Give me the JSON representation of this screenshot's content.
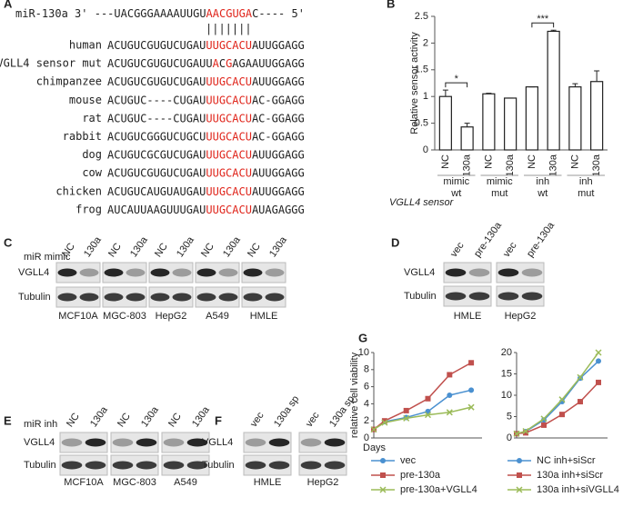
{
  "panel_a": {
    "label": "A",
    "mirna": {
      "name": "miR-130a 3'",
      "segments": [
        {
          "text": "---UACGGGAAAAUUGU",
          "red": false
        },
        {
          "text": "AACGUGA",
          "red": true
        },
        {
          "text": "C---- 5'",
          "red": false
        }
      ]
    },
    "pairing": "|||||||",
    "rows": [
      {
        "species": "human",
        "segments": [
          {
            "text": "ACUGUCGUGUCUGAU",
            "red": false
          },
          {
            "text": "UUGCACU",
            "red": true
          },
          {
            "text": "AUUGGAGG",
            "red": false
          }
        ]
      },
      {
        "species": "VGLL4 sensor mut",
        "segments": [
          {
            "text": "ACUGUCGUGUCUGAUU",
            "red": false
          },
          {
            "text": "A",
            "red": true
          },
          {
            "text": "C",
            "red": false
          },
          {
            "text": "G",
            "red": true
          },
          {
            "text": "AGAAUUGGAGG",
            "red": false
          }
        ]
      },
      {
        "species": "chimpanzee",
        "segments": [
          {
            "text": "ACUGUCGUGUCUGAU",
            "red": false
          },
          {
            "text": "UUGCACU",
            "red": true
          },
          {
            "text": "AUUGGAGG",
            "red": false
          }
        ]
      },
      {
        "species": "mouse",
        "segments": [
          {
            "text": "ACUGUC----CUGAU",
            "red": false
          },
          {
            "text": "UUGCACU",
            "red": true
          },
          {
            "text": "AC-GGAGG",
            "red": false
          }
        ]
      },
      {
        "species": "rat",
        "segments": [
          {
            "text": "ACUGUC----CUGAU",
            "red": false
          },
          {
            "text": "UUGCACU",
            "red": true
          },
          {
            "text": "AC-GGAGG",
            "red": false
          }
        ]
      },
      {
        "species": "rabbit",
        "segments": [
          {
            "text": "ACUGUCGGGUCUGCU",
            "red": false
          },
          {
            "text": "UUGCACU",
            "red": true
          },
          {
            "text": "AC-GGAGG",
            "red": false
          }
        ]
      },
      {
        "species": "dog",
        "segments": [
          {
            "text": "ACUGUCGCGUCUGAU",
            "red": false
          },
          {
            "text": "UUGCACU",
            "red": true
          },
          {
            "text": "AUUGGAGG",
            "red": false
          }
        ]
      },
      {
        "species": "cow",
        "segments": [
          {
            "text": "ACUGUCGUGUCUGAU",
            "red": false
          },
          {
            "text": "UUGCACU",
            "red": true
          },
          {
            "text": "AUUGGAGG",
            "red": false
          }
        ]
      },
      {
        "species": "chicken",
        "segments": [
          {
            "text": "ACUGUCAUGUAUGAU",
            "red": false
          },
          {
            "text": "UUGCACU",
            "red": true
          },
          {
            "text": "AUUGGAGG",
            "red": false
          }
        ]
      },
      {
        "species": "frog",
        "segments": [
          {
            "text": "AUCAUUAAGUUUGAU",
            "red": false
          },
          {
            "text": "UUGCACU",
            "red": true
          },
          {
            "text": "AUAGAGGG",
            "red": false
          }
        ]
      }
    ]
  },
  "panel_labels": {
    "b": "B",
    "g": "G"
  },
  "chart_data": [
    {
      "type": "bar",
      "y_label": "Relative sensor activity",
      "categories": [
        "NC",
        "130a",
        "NC",
        "130a",
        "NC",
        "130a",
        "NC",
        "130a"
      ],
      "values": [
        1.0,
        0.43,
        1.05,
        0.97,
        1.18,
        2.22,
        1.18,
        1.28
      ],
      "errors": [
        0.12,
        0.07,
        0.01,
        0,
        0,
        0.02,
        0.06,
        0.2
      ],
      "color": "#ffffff",
      "ylim": [
        0,
        2.5
      ],
      "yticks": [
        0,
        0.5,
        1,
        1.5,
        2,
        2.5
      ],
      "groups": [
        {
          "treatment": "mimic",
          "sensor": "wt",
          "significance": "*"
        },
        {
          "treatment": "mimic",
          "sensor": "mut"
        },
        {
          "treatment": "inh",
          "sensor": "wt",
          "significance": "***"
        },
        {
          "treatment": "inh",
          "sensor": "mut"
        }
      ],
      "group_title": "VGLL4 sensor"
    },
    {
      "type": "line",
      "y_label": "relative cell viability",
      "x_label": "Days",
      "x": [
        0,
        1,
        3,
        5,
        7,
        9
      ],
      "xlim": [
        0,
        10
      ],
      "ylim": [
        0,
        10
      ],
      "yticks": [
        0,
        2,
        4,
        6,
        8,
        10
      ],
      "series": [
        {
          "name": "vec",
          "color": "#4a90d0",
          "marker": "circle",
          "values": [
            1,
            1.9,
            2.4,
            3.1,
            5.0,
            5.6
          ]
        },
        {
          "name": "pre-130a",
          "color": "#c0504d",
          "marker": "square",
          "values": [
            1,
            2.0,
            3.2,
            4.6,
            7.4,
            8.8
          ]
        },
        {
          "name": "pre-130a+VGLL4",
          "color": "#9bbb59",
          "marker": "x",
          "values": [
            1,
            1.8,
            2.3,
            2.7,
            3.0,
            3.6
          ]
        }
      ]
    },
    {
      "type": "line",
      "x": [
        0,
        1,
        3,
        5,
        7,
        9
      ],
      "xlim": [
        0,
        10
      ],
      "ylim": [
        0,
        20
      ],
      "yticks": [
        0,
        5,
        10,
        15,
        20
      ],
      "series": [
        {
          "name": "NC inh+siScr",
          "color": "#4a90d0",
          "marker": "circle",
          "values": [
            1,
            1.5,
            4.2,
            8.5,
            14,
            18
          ]
        },
        {
          "name": "130a inh+siScr",
          "color": "#c0504d",
          "marker": "square",
          "values": [
            1,
            1.2,
            3.0,
            5.5,
            8.5,
            13
          ]
        },
        {
          "name": "130a inh+siVGLL4",
          "color": "#9bbb59",
          "marker": "x",
          "values": [
            1,
            1.6,
            4.5,
            9,
            14.2,
            20
          ]
        }
      ]
    }
  ],
  "blots": {
    "c": {
      "label": "C",
      "header": "miR mimic",
      "lanes": [
        "NC",
        "130a"
      ],
      "rows": [
        "VGLL4",
        "Tubulin"
      ],
      "cell_lines": [
        "MCF10A",
        "MGC-803",
        "HepG2",
        "A549",
        "HMLE"
      ]
    },
    "d": {
      "label": "D",
      "lanes": [
        "vec",
        "pre-130a"
      ],
      "rows": [
        "VGLL4",
        "Tubulin"
      ],
      "cell_lines": [
        "HMLE",
        "HepG2"
      ]
    },
    "e": {
      "label": "E",
      "header": "miR inh",
      "lanes": [
        "NC",
        "130a"
      ],
      "rows": [
        "VGLL4",
        "Tubulin"
      ],
      "cell_lines": [
        "MCF10A",
        "MGC-803",
        "A549"
      ]
    },
    "f": {
      "label": "F",
      "lanes": [
        "vec",
        "130a sp"
      ],
      "rows": [
        "VGLL4",
        "Tubulin"
      ],
      "cell_lines": [
        "HMLE",
        "HepG2"
      ]
    }
  }
}
